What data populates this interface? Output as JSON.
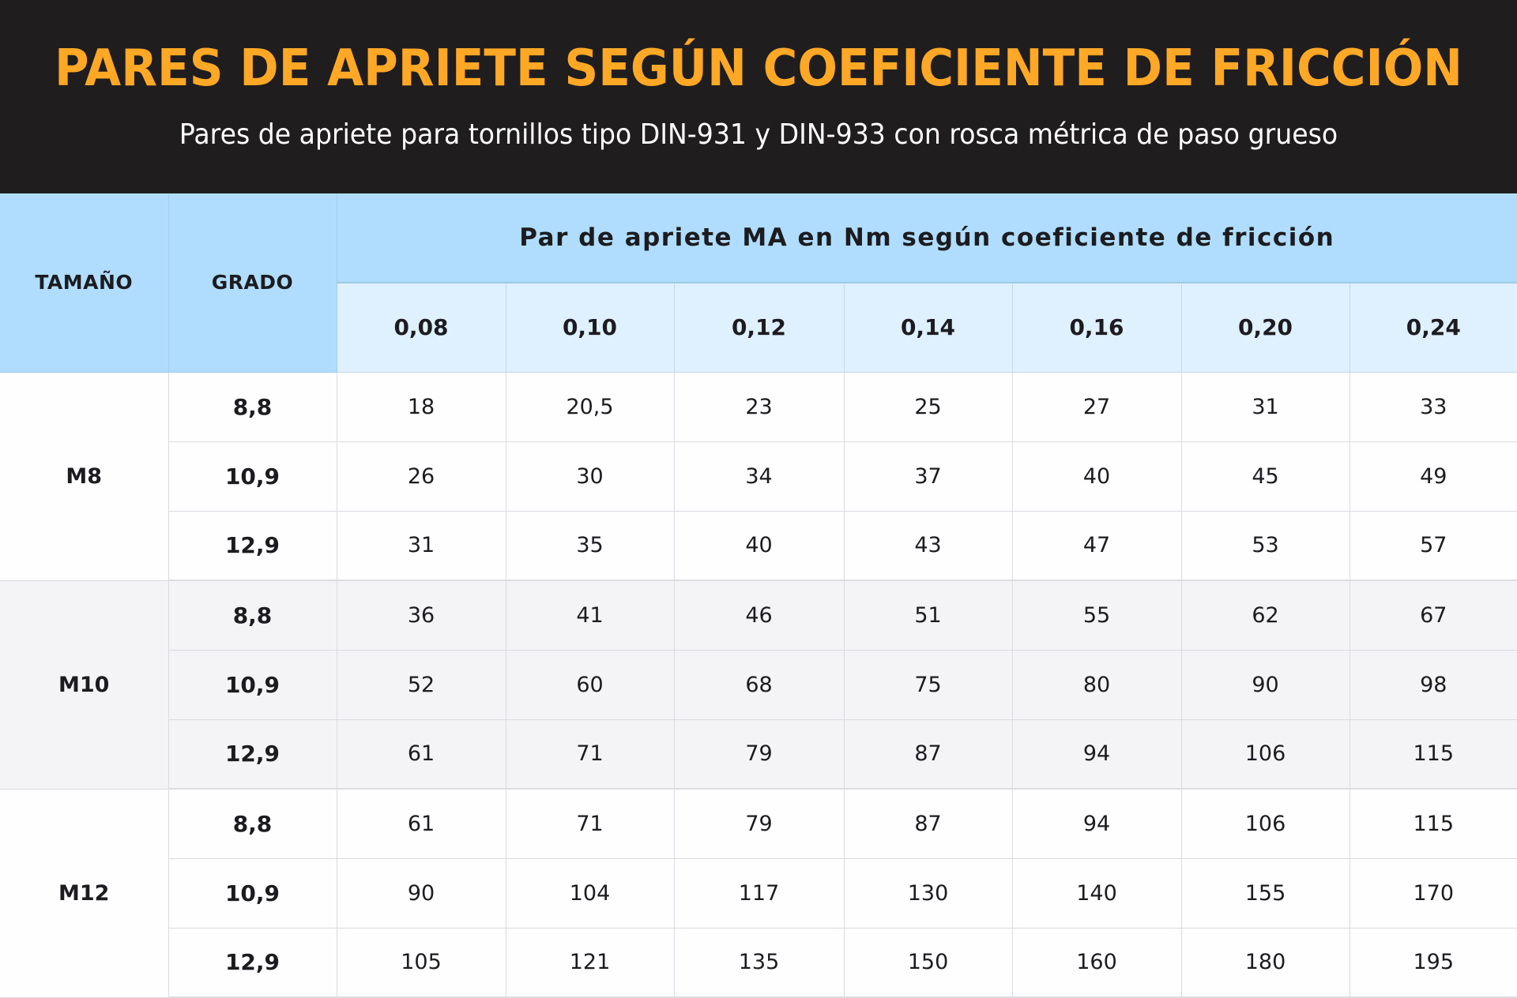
{
  "header": {
    "title": "PARES DE APRIETE SEGÚN COEFICIENTE DE FRICCIÓN",
    "subtitle": "Pares de apriete para tornillos tipo DIN-931 y DIN-933 con rosca métrica de paso grueso"
  },
  "colors": {
    "banner_bg": "#1f1d1e",
    "title": "#fea826",
    "subtitle": "#ffffff",
    "header_blue": "#b0ddfd",
    "subheader_blue": "#dff0fe",
    "row_white": "#fefdff",
    "row_grey": "#f4f3f6"
  },
  "table": {
    "col_size": "TAMAÑO",
    "col_grade": "GRADO",
    "group_header": "Par de apriete MA en Nm según coeficiente de fricción",
    "coefficients": [
      "0,08",
      "0,10",
      "0,12",
      "0,14",
      "0,16",
      "0,20",
      "0,24"
    ],
    "groups": [
      {
        "size": "M8",
        "rows": [
          {
            "grade": "8,8",
            "values": [
              "18",
              "20,5",
              "23",
              "25",
              "27",
              "31",
              "33"
            ]
          },
          {
            "grade": "10,9",
            "values": [
              "26",
              "30",
              "34",
              "37",
              "40",
              "45",
              "49"
            ]
          },
          {
            "grade": "12,9",
            "values": [
              "31",
              "35",
              "40",
              "43",
              "47",
              "53",
              "57"
            ]
          }
        ]
      },
      {
        "size": "M10",
        "rows": [
          {
            "grade": "8,8",
            "values": [
              "36",
              "41",
              "46",
              "51",
              "55",
              "62",
              "67"
            ]
          },
          {
            "grade": "10,9",
            "values": [
              "52",
              "60",
              "68",
              "75",
              "80",
              "90",
              "98"
            ]
          },
          {
            "grade": "12,9",
            "values": [
              "61",
              "71",
              "79",
              "87",
              "94",
              "106",
              "115"
            ]
          }
        ]
      },
      {
        "size": "M12",
        "rows": [
          {
            "grade": "8,8",
            "values": [
              "61",
              "71",
              "79",
              "87",
              "94",
              "106",
              "115"
            ]
          },
          {
            "grade": "10,9",
            "values": [
              "90",
              "104",
              "117",
              "130",
              "140",
              "155",
              "170"
            ]
          },
          {
            "grade": "12,9",
            "values": [
              "105",
              "121",
              "135",
              "150",
              "160",
              "180",
              "195"
            ]
          }
        ]
      }
    ]
  }
}
